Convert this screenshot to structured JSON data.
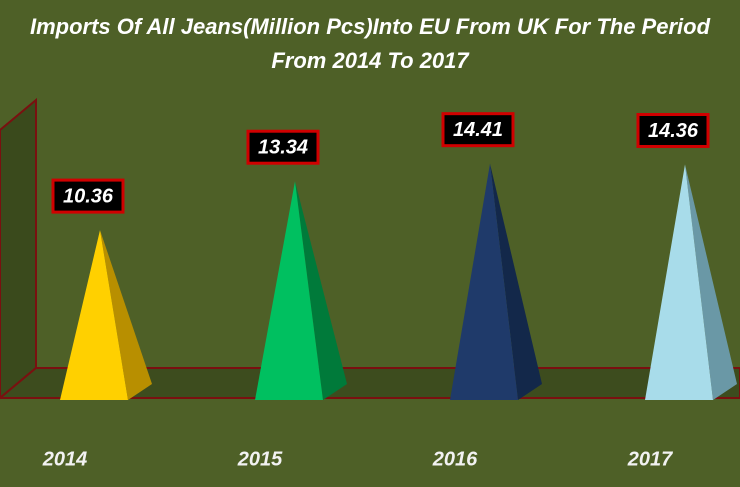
{
  "chart_data": {
    "type": "pyramid",
    "title": "Imports Of All Jeans(Million Pcs)Into EU From UK For The Period",
    "subtitle": "From 2014 To 2017",
    "categories": [
      "2014",
      "2015",
      "2016",
      "2017"
    ],
    "values": [
      10.36,
      13.34,
      14.41,
      14.36
    ],
    "colors": [
      "#ffd000",
      "#00c060",
      "#1f3a6a",
      "#a8dcea"
    ],
    "side_colors": [
      "#b88f00",
      "#007a3a",
      "#13284a",
      "#6a98a6"
    ]
  }
}
